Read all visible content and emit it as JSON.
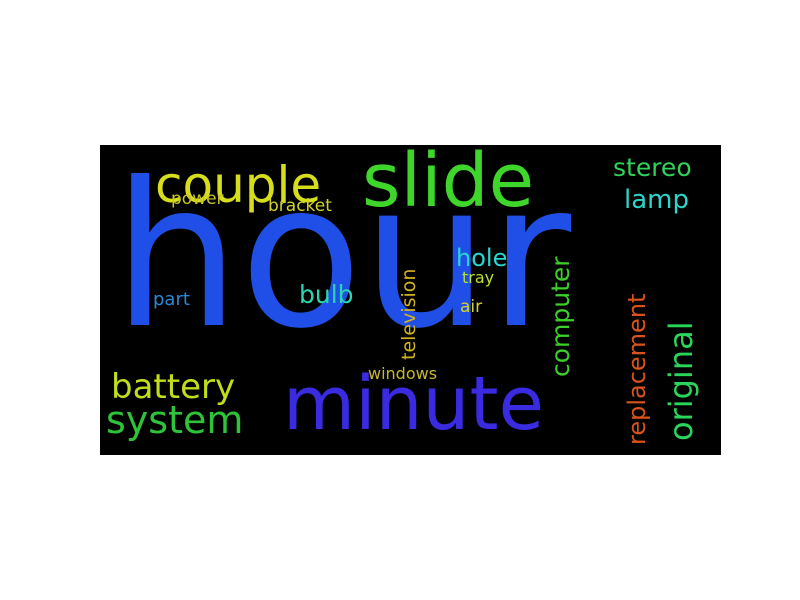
{
  "words": {
    "hour": {
      "text": "hour",
      "color": "#1f4fe6"
    },
    "slide": {
      "text": "slide",
      "color": "#3ed62a"
    },
    "couple": {
      "text": "couple",
      "color": "#d6dd1a"
    },
    "minute": {
      "text": "minute",
      "color": "#3a2be0"
    },
    "stereo": {
      "text": "stereo",
      "color": "#2fd35a"
    },
    "lamp": {
      "text": "lamp",
      "color": "#2ad6c8"
    },
    "power": {
      "text": "power",
      "color": "#c9c32a"
    },
    "bracket": {
      "text": "bracket",
      "color": "#d2d22c"
    },
    "television": {
      "text": "television",
      "color": "#d4b21c"
    },
    "hole": {
      "text": "hole",
      "color": "#2ad6d2"
    },
    "tray": {
      "text": "tray",
      "color": "#bfe02a"
    },
    "computer": {
      "text": "computer",
      "color": "#3ccf2a"
    },
    "replacement": {
      "text": "replacement",
      "color": "#d9531a"
    },
    "original": {
      "text": "original",
      "color": "#2ad65a"
    },
    "part": {
      "text": "part",
      "color": "#2a8ad6"
    },
    "bulb": {
      "text": "bulb",
      "color": "#2ad6b0"
    },
    "air": {
      "text": "air",
      "color": "#d6d22a"
    },
    "battery": {
      "text": "battery",
      "color": "#c3dd1a"
    },
    "windows": {
      "text": "windows",
      "color": "#c8b82a"
    },
    "system": {
      "text": "system",
      "color": "#2ec43a"
    }
  }
}
